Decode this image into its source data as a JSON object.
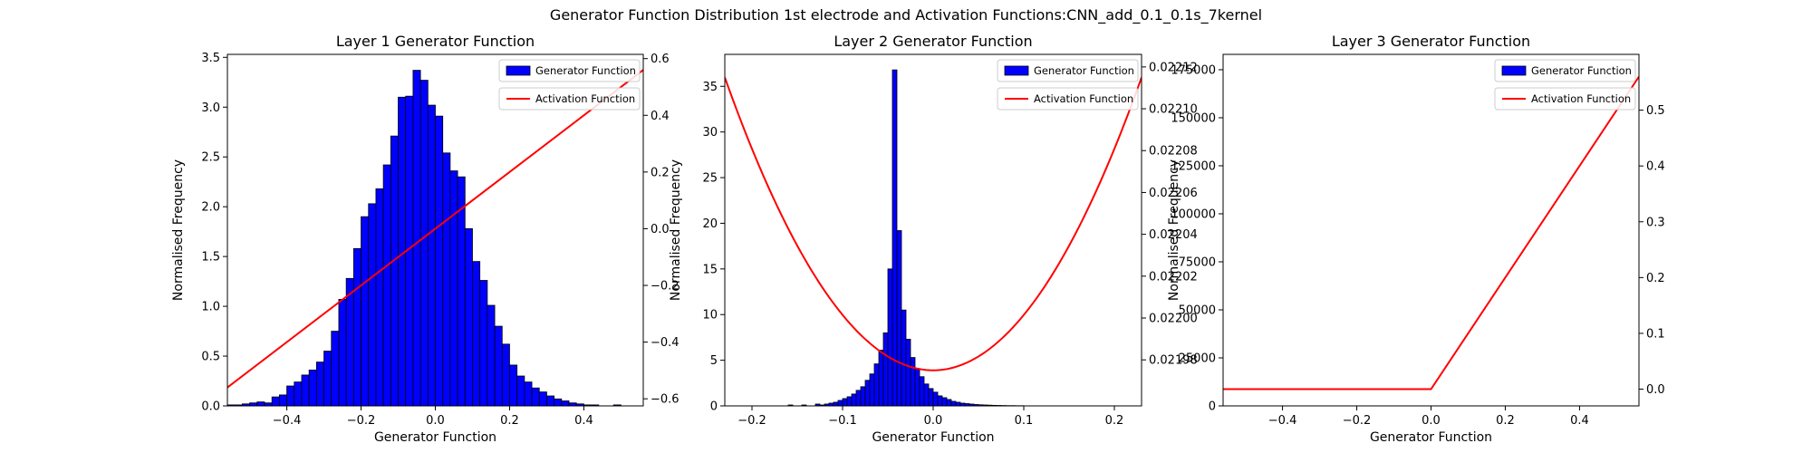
{
  "figure": {
    "suptitle": "Generator Function Distribution 1st electrode and Activation Functions:CNN_add_0.1_0.1s_7kernel",
    "colors": {
      "hist_fill": "#0000ff",
      "hist_edge": "#000000",
      "activation": "#ff0000"
    }
  },
  "chart_data": [
    {
      "type": "bar",
      "title": "Layer 1 Generator Function",
      "xlabel": "Generator Function",
      "ylabel": "Normalised Frequency",
      "xlim": [
        -0.56,
        0.56
      ],
      "ylim": [
        0,
        3.53
      ],
      "y2lim": [
        -0.625,
        0.615
      ],
      "xticks": [
        -0.4,
        -0.2,
        0.0,
        0.2,
        0.4
      ],
      "xtick_labels": [
        "−0.4",
        "−0.2",
        "0.0",
        "0.2",
        "0.4"
      ],
      "yticks": [
        0,
        0.5,
        1.0,
        1.5,
        2.0,
        2.5,
        3.0,
        3.5
      ],
      "ytick_labels": [
        "0.0",
        "0.5",
        "1.0",
        "1.5",
        "2.0",
        "2.5",
        "3.0",
        "3.5"
      ],
      "y2ticks": [
        -0.6,
        -0.4,
        -0.2,
        0.0,
        0.2,
        0.4,
        0.6
      ],
      "y2tick_labels": [
        "−0.6",
        "−0.4",
        "−0.2",
        "0.0",
        "0.2",
        "0.4",
        "0.6"
      ],
      "legend": [
        "Generator Function",
        "Activation Function"
      ],
      "legend_location": "top-right",
      "hist": {
        "bin_edges": [
          -0.56,
          -0.54,
          -0.52,
          -0.5,
          -0.48,
          -0.46,
          -0.44,
          -0.42,
          -0.4,
          -0.38,
          -0.36,
          -0.34,
          -0.32,
          -0.3,
          -0.28,
          -0.26,
          -0.24,
          -0.22,
          -0.2,
          -0.18,
          -0.16,
          -0.14,
          -0.12,
          -0.1,
          -0.08,
          -0.06,
          -0.04,
          -0.02,
          0.0,
          0.02,
          0.04,
          0.06,
          0.08,
          0.1,
          0.12,
          0.14,
          0.16,
          0.18,
          0.2,
          0.22,
          0.24,
          0.26,
          0.28,
          0.3,
          0.32,
          0.34,
          0.36,
          0.38,
          0.4,
          0.42,
          0.44,
          0.46,
          0.48,
          0.5
        ],
        "values": [
          0.01,
          0.01,
          0.02,
          0.03,
          0.04,
          0.03,
          0.09,
          0.11,
          0.2,
          0.24,
          0.31,
          0.36,
          0.44,
          0.55,
          0.75,
          1.07,
          1.28,
          1.58,
          1.9,
          2.03,
          2.18,
          2.42,
          2.71,
          3.1,
          3.11,
          3.37,
          3.27,
          3.02,
          2.91,
          2.54,
          2.36,
          2.3,
          1.78,
          1.45,
          1.26,
          1.01,
          0.8,
          0.62,
          0.41,
          0.3,
          0.24,
          0.18,
          0.14,
          0.1,
          0.07,
          0.05,
          0.03,
          0.02,
          0.01,
          0.01,
          0.0,
          0.0,
          0.01
        ]
      },
      "activation": {
        "kind": "linear",
        "x": [
          -0.56,
          0.56
        ],
        "y": [
          -0.56,
          0.56
        ]
      }
    },
    {
      "type": "bar",
      "title": "Layer 2 Generator Function",
      "xlabel": "Generator Function",
      "ylabel": "Normalised Frequency",
      "xlim": [
        -0.23,
        0.23
      ],
      "ylim": [
        0,
        38.5
      ],
      "y2lim": [
        0.021958,
        0.022126
      ],
      "xticks": [
        -0.2,
        -0.1,
        0.0,
        0.1,
        0.2
      ],
      "xtick_labels": [
        "−0.2",
        "−0.1",
        "0.0",
        "0.1",
        "0.2"
      ],
      "yticks": [
        0,
        5,
        10,
        15,
        20,
        25,
        30,
        35
      ],
      "ytick_labels": [
        "0",
        "5",
        "10",
        "15",
        "20",
        "25",
        "30",
        "35"
      ],
      "y2ticks": [
        0.02198,
        0.022,
        0.02202,
        0.02204,
        0.02206,
        0.02208,
        0.0221,
        0.02212
      ],
      "y2tick_labels": [
        "0.02198",
        "0.02200",
        "0.02202",
        "0.02204",
        "0.02206",
        "0.02208",
        "0.02210",
        "0.02212"
      ],
      "legend": [
        "Generator Function",
        "Activation Function"
      ],
      "legend_location": "top-right",
      "hist": {
        "bin_edges": [
          -0.23,
          -0.16,
          -0.155,
          -0.145,
          -0.14,
          -0.13,
          -0.125,
          -0.12,
          -0.115,
          -0.11,
          -0.105,
          -0.1,
          -0.095,
          -0.09,
          -0.085,
          -0.08,
          -0.075,
          -0.07,
          -0.065,
          -0.06,
          -0.055,
          -0.05,
          -0.045,
          -0.04,
          -0.035,
          -0.03,
          -0.025,
          -0.02,
          -0.015,
          -0.01,
          -0.005,
          0.0,
          0.005,
          0.01,
          0.015,
          0.02,
          0.025,
          0.03,
          0.035,
          0.04,
          0.045,
          0.05,
          0.055,
          0.06,
          0.065,
          0.07,
          0.075,
          0.08,
          0.09,
          0.1,
          0.11,
          0.12
        ],
        "values": [
          0.0,
          0.1,
          0.0,
          0.1,
          0.0,
          0.2,
          0.1,
          0.2,
          0.3,
          0.4,
          0.6,
          0.8,
          1.0,
          1.3,
          1.7,
          2.1,
          2.8,
          3.5,
          4.6,
          6.1,
          8.0,
          15.0,
          36.8,
          19.2,
          10.5,
          7.3,
          5.3,
          4.1,
          3.2,
          2.4,
          1.9,
          1.5,
          1.1,
          0.9,
          0.7,
          0.5,
          0.4,
          0.3,
          0.25,
          0.2,
          0.15,
          0.12,
          0.1,
          0.08,
          0.06,
          0.05,
          0.04,
          0.03,
          0.02,
          0.01,
          0.01
        ]
      },
      "activation": {
        "kind": "parabola",
        "vertex_x": 0.0,
        "vertex_y": 0.021975,
        "y_at_xmin": 0.022115,
        "y_at_xmax": 0.022115,
        "x": [
          -0.23,
          0.23
        ]
      }
    },
    {
      "type": "bar",
      "title": "Layer 3 Generator Function",
      "xlabel": "Generator Function",
      "ylabel": "Normalised Frequency",
      "xlim": [
        -0.56,
        0.56
      ],
      "ylim": [
        0,
        183000
      ],
      "y2lim": [
        -0.03,
        0.6
      ],
      "xticks": [
        -0.4,
        -0.2,
        0.0,
        0.2,
        0.4
      ],
      "xtick_labels": [
        "−0.4",
        "−0.2",
        "0.0",
        "0.2",
        "0.4"
      ],
      "yticks": [
        0,
        25000,
        50000,
        75000,
        100000,
        125000,
        150000,
        175000
      ],
      "ytick_labels": [
        "0",
        "25000",
        "50000",
        "75000",
        "100000",
        "125000",
        "150000",
        "175000"
      ],
      "y2ticks": [
        0.0,
        0.1,
        0.2,
        0.3,
        0.4,
        0.5
      ],
      "y2tick_labels": [
        "0.0",
        "0.1",
        "0.2",
        "0.3",
        "0.4",
        "0.5"
      ],
      "legend": [
        "Generator Function",
        "Activation Function"
      ],
      "legend_location": "top-right",
      "hist": {
        "bin_edges": [],
        "values": []
      },
      "activation": {
        "kind": "relu",
        "x": [
          -0.56,
          0.0,
          0.56
        ],
        "y": [
          0.0,
          0.0,
          0.56
        ]
      }
    }
  ]
}
